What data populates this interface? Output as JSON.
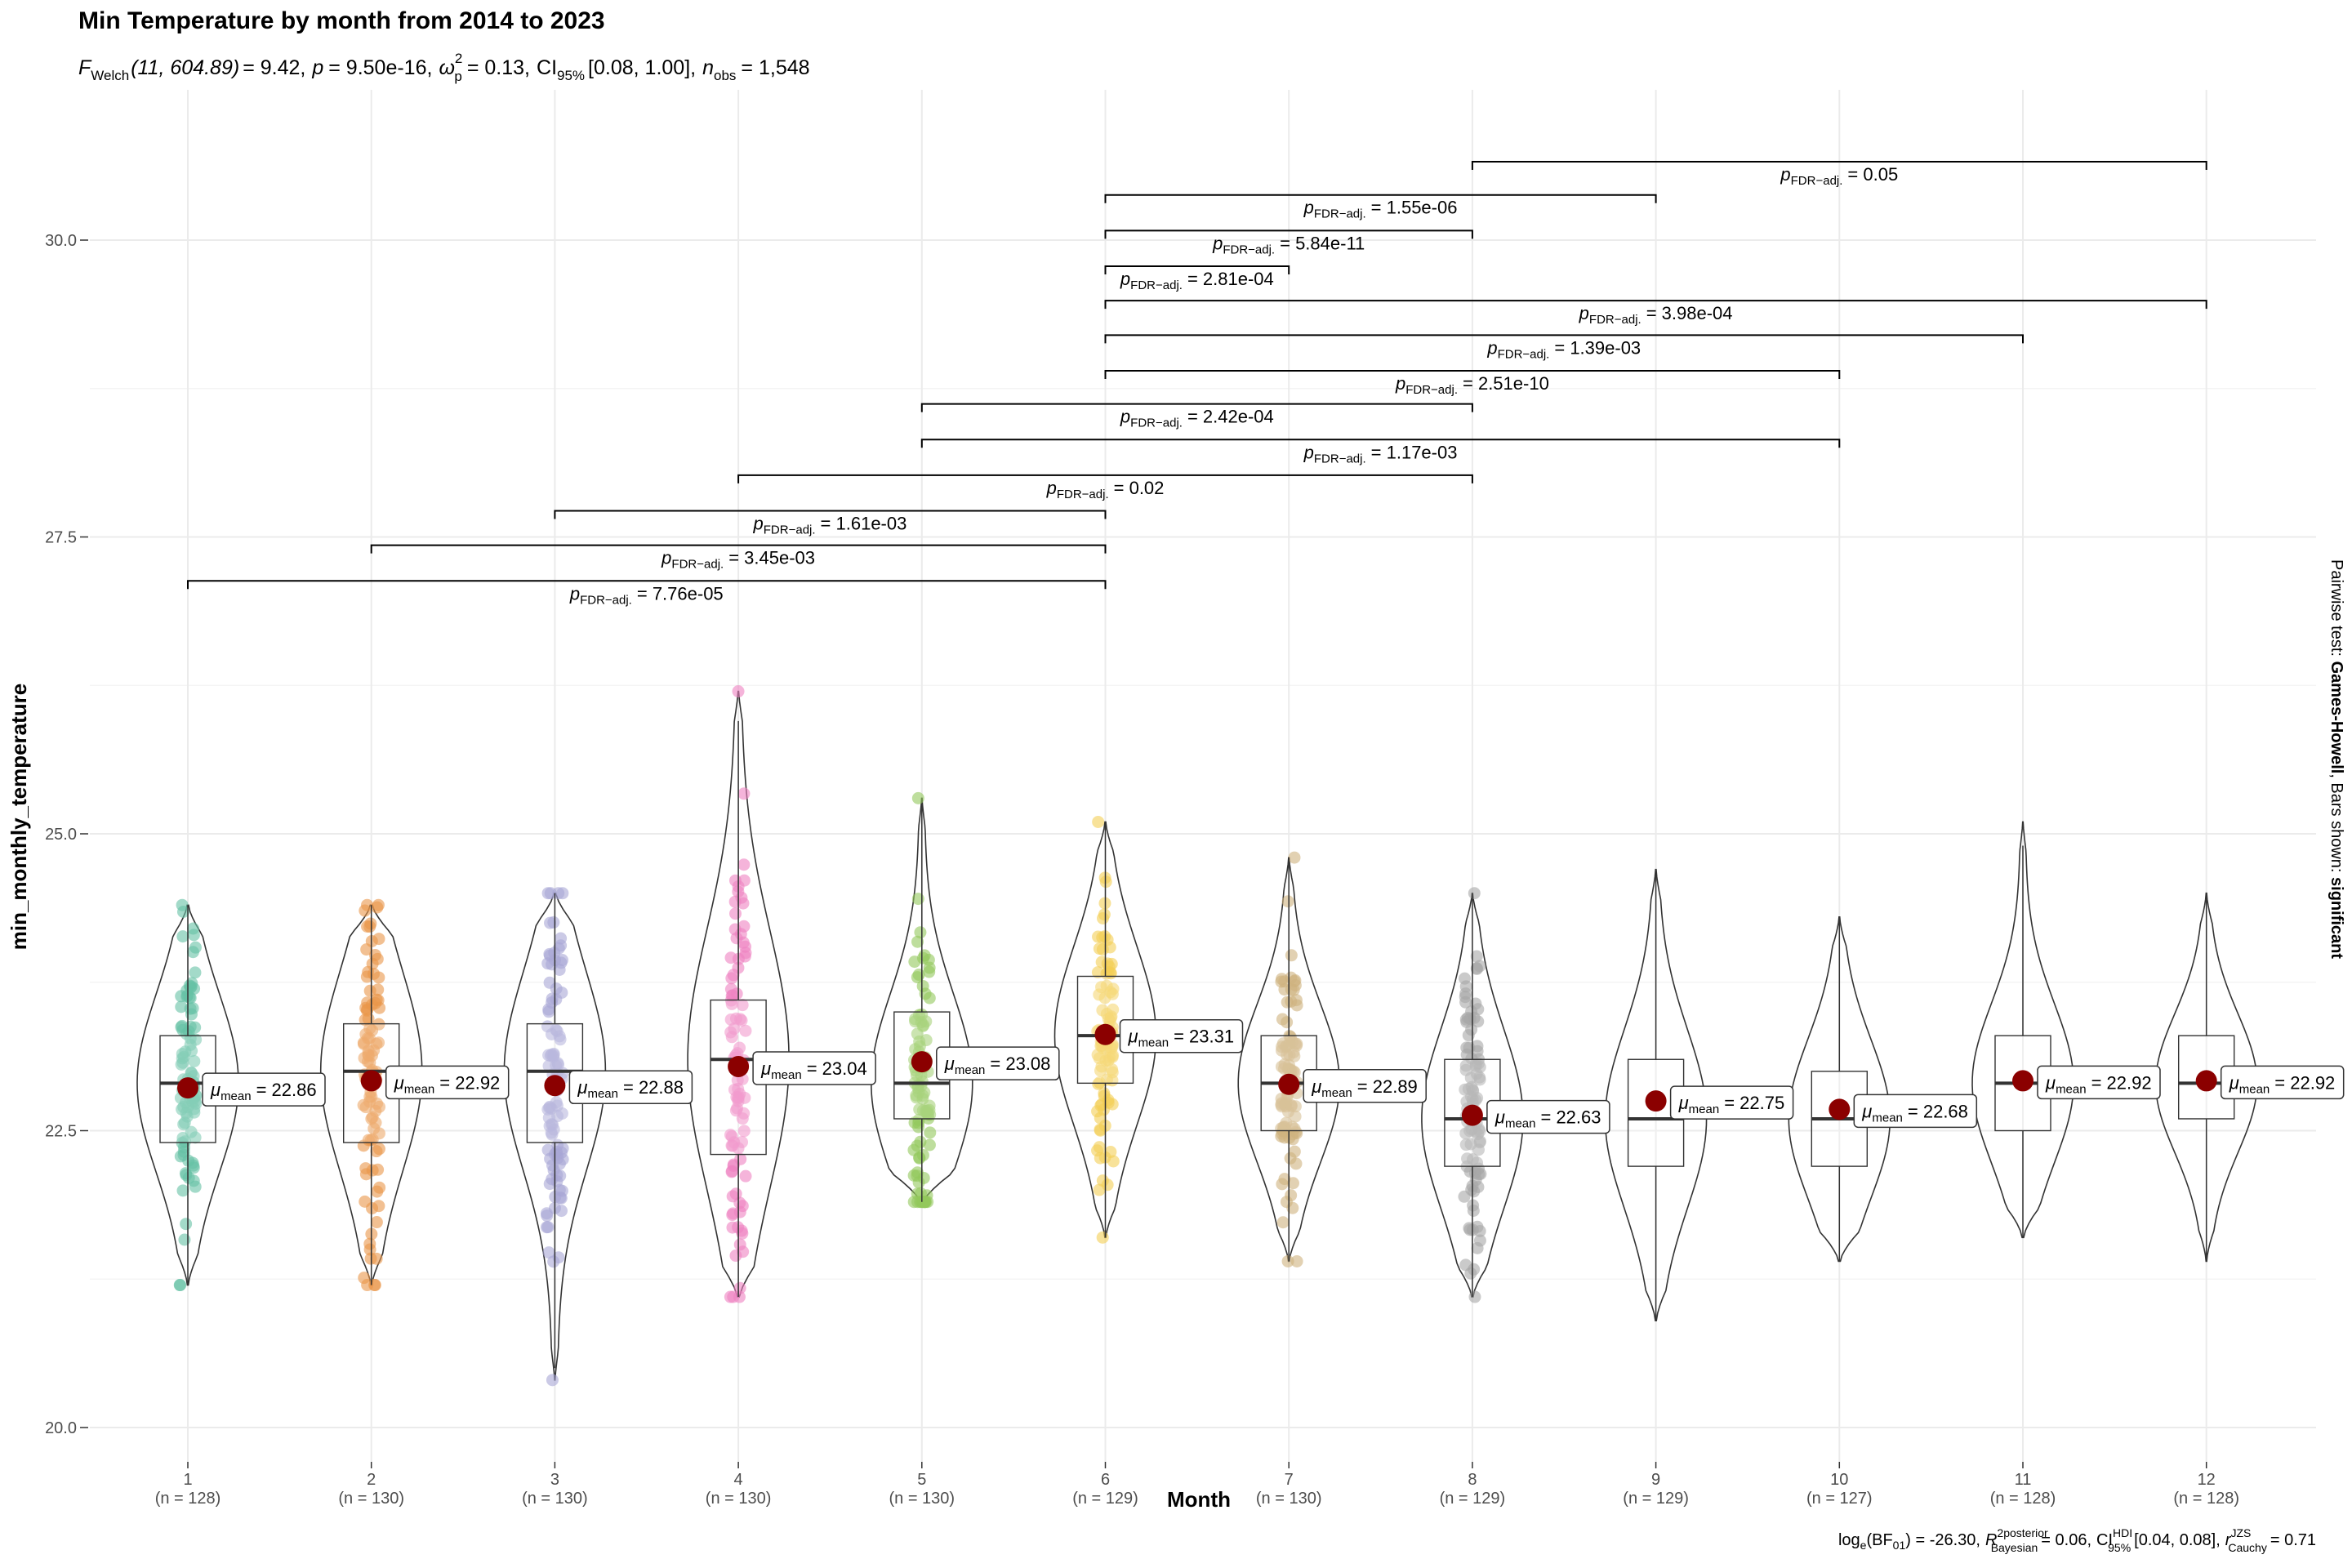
{
  "chart_data": {
    "type": "violin",
    "title": "Min Temperature by month from 2014 to 2023",
    "subtitle": {
      "F_symbol": "F",
      "F_sub": "Welch",
      "F_df": "(11, 604.89)",
      "F_value": "= 9.42,",
      "p_symbol": "p",
      "p_value": "= 9.50e-16,",
      "omega_symbol": "ω",
      "omega_sup": "2",
      "omega_sub": "p",
      "omega_value": "= 0.13,",
      "ci_symbol": "CI",
      "ci_sub": "95%",
      "ci_value": "[0.08, 1.00],",
      "n_symbol": "n",
      "n_sub": "obs",
      "n_value": "= 1,548"
    },
    "xlabel": "Month",
    "ylabel": "min_monthly_temperature",
    "ylim": [
      20,
      30.8
    ],
    "yticks": [
      20.0,
      22.5,
      25.0,
      27.5,
      30.0
    ],
    "ytick_labels": [
      "20.0",
      "22.5",
      "25.0",
      "27.5",
      "30.0"
    ],
    "categories": [
      "1",
      "2",
      "3",
      "4",
      "5",
      "6",
      "7",
      "8",
      "9",
      "10",
      "11",
      "12"
    ],
    "n_labels": [
      "(n = 128)",
      "(n = 130)",
      "(n = 130)",
      "(n = 130)",
      "(n = 130)",
      "(n = 129)",
      "(n = 130)",
      "(n = 129)",
      "(n = 129)",
      "(n = 127)",
      "(n = 128)",
      "(n = 128)"
    ],
    "colors": [
      "#66c2a5",
      "#e9964a",
      "#a9a6d6",
      "#ee82c2",
      "#93c85c",
      "#f4cf55",
      "#cfb27e",
      "#a6a6a6",
      null,
      null,
      null,
      null
    ],
    "mean_color": "#8b0000",
    "means": [
      22.86,
      22.92,
      22.88,
      23.04,
      23.08,
      23.31,
      22.89,
      22.63,
      22.75,
      22.68,
      22.92,
      22.92
    ],
    "mean_label_prefix": "μ",
    "mean_label_sub": "mean",
    "mean_labels": [
      "= 22.86",
      "= 22.92",
      "= 22.88",
      "= 23.04",
      "= 23.08",
      "= 23.31",
      "= 22.89",
      "= 22.63",
      "= 22.75",
      "= 22.68",
      "= 22.92",
      "= 22.92"
    ],
    "medians": [
      22.9,
      23.0,
      23.0,
      23.1,
      22.9,
      23.3,
      22.9,
      22.6,
      22.6,
      22.6,
      22.9,
      22.9
    ],
    "q1": [
      22.4,
      22.4,
      22.4,
      22.3,
      22.6,
      22.9,
      22.5,
      22.2,
      22.2,
      22.2,
      22.5,
      22.6
    ],
    "q3": [
      23.3,
      23.4,
      23.4,
      23.6,
      23.5,
      23.8,
      23.3,
      23.1,
      23.1,
      23.0,
      23.3,
      23.3
    ],
    "mins": [
      21.2,
      21.2,
      20.4,
      21.1,
      21.9,
      21.6,
      21.4,
      21.1,
      20.9,
      21.4,
      21.6,
      21.4
    ],
    "maxs": [
      24.4,
      24.4,
      24.5,
      26.2,
      25.3,
      25.1,
      24.8,
      24.5,
      24.7,
      24.3,
      25.1,
      24.5
    ],
    "comparisons": [
      {
        "group1": "1",
        "group2": "6",
        "p_prefix": "p",
        "p_sub": "FDR−adj.",
        "p_value": "= 7.76e-05"
      },
      {
        "group1": "2",
        "group2": "6",
        "p_prefix": "p",
        "p_sub": "FDR−adj.",
        "p_value": "= 3.45e-03"
      },
      {
        "group1": "3",
        "group2": "6",
        "p_prefix": "p",
        "p_sub": "FDR−adj.",
        "p_value": "= 1.61e-03"
      },
      {
        "group1": "4",
        "group2": "8",
        "p_prefix": "p",
        "p_sub": "FDR−adj.",
        "p_value": "= 0.02"
      },
      {
        "group1": "5",
        "group2": "10",
        "p_prefix": "p",
        "p_sub": "FDR−adj.",
        "p_value": "= 1.17e-03"
      },
      {
        "group1": "5",
        "group2": "8",
        "p_prefix": "p",
        "p_sub": "FDR−adj.",
        "p_value": "= 2.42e-04"
      },
      {
        "group1": "6",
        "group2": "10",
        "p_prefix": "p",
        "p_sub": "FDR−adj.",
        "p_value": "= 2.51e-10"
      },
      {
        "group1": "6",
        "group2": "11",
        "p_prefix": "p",
        "p_sub": "FDR−adj.",
        "p_value": "= 1.39e-03"
      },
      {
        "group1": "6",
        "group2": "12",
        "p_prefix": "p",
        "p_sub": "FDR−adj.",
        "p_value": "= 3.98e-04"
      },
      {
        "group1": "6",
        "group2": "7",
        "p_prefix": "p",
        "p_sub": "FDR−adj.",
        "p_value": "= 2.81e-04"
      },
      {
        "group1": "6",
        "group2": "8",
        "p_prefix": "p",
        "p_sub": "FDR−adj.",
        "p_value": "= 5.84e-11"
      },
      {
        "group1": "6",
        "group2": "9",
        "p_prefix": "p",
        "p_sub": "FDR−adj.",
        "p_value": "= 1.55e-06"
      },
      {
        "group1": "8",
        "group2": "12",
        "p_prefix": "p",
        "p_sub": "FDR−adj.",
        "p_value": "= 0.05"
      }
    ],
    "side_caption": {
      "prefix": "Pairwise test: ",
      "test": "Games-Howell",
      "middle": ", Bars shown: ",
      "shown": "significant"
    },
    "caption": {
      "log": "log",
      "log_sub": "e",
      "bf": "(BF",
      "bf_sub": "01",
      "bf_value": ") = -26.30,",
      "r2": "R",
      "r2_sup": "2",
      "r2_sup2": "posterior",
      "r2_sub": "Bayesian",
      "r2_value": "= 0.06,",
      "ci": "CI",
      "ci_sup": "HDI",
      "ci_sub": "95%",
      "ci_value": "[0.04, 0.08],",
      "r": "r",
      "r_sup": "JZS",
      "r_sub": "Cauchy",
      "r_value": "= 0.71"
    }
  }
}
